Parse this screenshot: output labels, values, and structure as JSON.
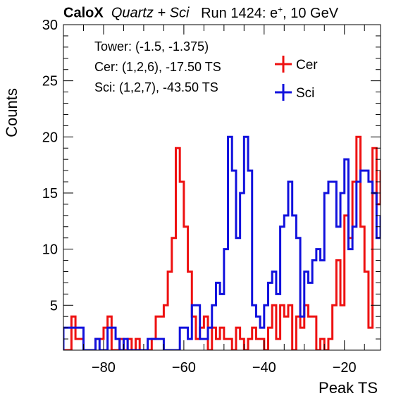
{
  "header": {
    "experiment": "CaloX",
    "setup": "Quartz + Sci",
    "run_prefix": "Run 1424: e",
    "run_charge": "+",
    "run_suffix": ", 10 GeV"
  },
  "chart_data": {
    "type": "histogram-step",
    "xlabel": "Peak TS",
    "ylabel": "Counts",
    "xlim": [
      -90,
      -11
    ],
    "ylim": [
      1,
      30
    ],
    "x_ticks": [
      -80,
      -60,
      -40,
      -20
    ],
    "y_ticks": [
      5,
      10,
      15,
      20,
      25,
      30
    ],
    "annotations": [
      "Tower: (-1.5, -1.375)",
      "Cer: (1,2,6), -17.50 TS",
      "Sci: (1,2,7), -43.50 TS"
    ],
    "legend": {
      "placement": "top-right",
      "entries": [
        "Cer",
        "Sci"
      ]
    },
    "colors": {
      "Cer": "#ee1111",
      "Sci": "#1111dd"
    },
    "series": [
      {
        "name": "Cer",
        "edges": [
          -90,
          -89,
          -88,
          -87,
          -86,
          -85,
          -84,
          -83,
          -82,
          -81,
          -80,
          -79,
          -78,
          -77,
          -76,
          -75,
          -74,
          -73,
          -72,
          -71,
          -70,
          -69,
          -68,
          -67,
          -66,
          -65,
          -64,
          -63,
          -62,
          -61,
          -60,
          -59,
          -58,
          -57,
          -56,
          -55,
          -54,
          -53,
          -52,
          -51,
          -50,
          -49,
          -48,
          -47,
          -46,
          -45,
          -44,
          -43,
          -42,
          -41,
          -40,
          -39,
          -38,
          -37,
          -36,
          -35,
          -34,
          -33,
          -32,
          -31,
          -30,
          -29,
          -28,
          -27,
          -26,
          -25,
          -24,
          -23,
          -22,
          -21,
          -20,
          -19,
          -18,
          -17,
          -16,
          -15,
          -14,
          -13,
          -12,
          -11
        ],
        "values": [
          1,
          1,
          4,
          2,
          2,
          1,
          1,
          1,
          2,
          2,
          3,
          4,
          1,
          1,
          2,
          1,
          2,
          1,
          2,
          1,
          1,
          1,
          2,
          4,
          4,
          5,
          8,
          11,
          19,
          16,
          12,
          8,
          4,
          2,
          3,
          4,
          1,
          3,
          2,
          3,
          2,
          2,
          1,
          3,
          2,
          1,
          2,
          3,
          2,
          2,
          1,
          3,
          5,
          2,
          5,
          4,
          5,
          1,
          4,
          3,
          5,
          4,
          4,
          1,
          2,
          1,
          2,
          5,
          9,
          5,
          13,
          11,
          16,
          20,
          12,
          8,
          3,
          19,
          14,
          17
        ]
      },
      {
        "name": "Sci",
        "edges": [
          -90,
          -89,
          -88,
          -87,
          -86,
          -85,
          -84,
          -83,
          -82,
          -81,
          -80,
          -79,
          -78,
          -77,
          -76,
          -75,
          -74,
          -73,
          -72,
          -71,
          -70,
          -69,
          -68,
          -67,
          -66,
          -65,
          -64,
          -63,
          -62,
          -61,
          -60,
          -59,
          -58,
          -57,
          -56,
          -55,
          -54,
          -53,
          -52,
          -51,
          -50,
          -49,
          -48,
          -47,
          -46,
          -45,
          -44,
          -43,
          -42,
          -41,
          -40,
          -39,
          -38,
          -37,
          -36,
          -35,
          -34,
          -33,
          -32,
          -31,
          -30,
          -29,
          -28,
          -27,
          -26,
          -25,
          -24,
          -23,
          -22,
          -21,
          -20,
          -19,
          -18,
          -17,
          -16,
          -15,
          -14,
          -13,
          -12,
          -11
        ],
        "values": [
          3,
          3,
          3,
          3,
          3,
          1,
          1,
          1,
          2,
          1,
          1,
          3,
          3,
          2,
          1,
          2,
          1,
          1,
          1,
          1,
          1,
          2,
          2,
          2,
          2,
          1,
          1,
          1,
          1,
          3,
          3,
          2,
          5,
          5,
          2,
          2,
          3,
          5,
          7,
          6,
          10,
          20,
          17,
          11,
          15,
          20,
          17,
          5,
          4,
          3,
          5,
          7,
          8,
          6,
          12,
          13,
          16,
          13,
          11,
          4,
          8,
          7,
          9,
          10,
          9,
          15,
          16,
          16,
          12,
          15,
          18,
          10,
          12,
          16,
          17,
          17,
          16,
          15,
          11,
          13
        ]
      }
    ]
  }
}
